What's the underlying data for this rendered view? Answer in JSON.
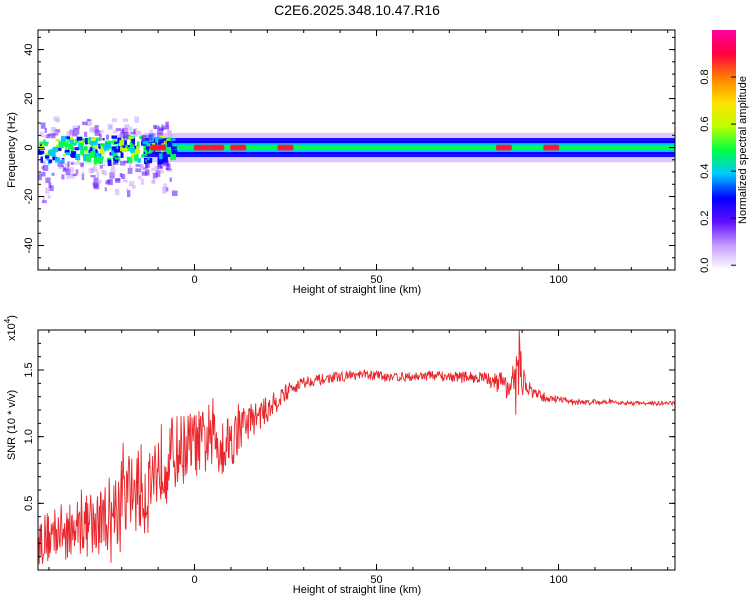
{
  "title": "C2E6.2025.348.10.47.R16",
  "chart_data": [
    {
      "type": "heatmap",
      "xlabel": "Height of straight line (km)",
      "ylabel": "Frequency (Hz)",
      "xlim": [
        -43,
        132
      ],
      "ylim": [
        -50,
        48
      ],
      "x_ticks": [
        0,
        50,
        100
      ],
      "y_ticks": [
        40,
        20,
        0,
        -20,
        -40
      ],
      "band": {
        "center_hz": 0,
        "note": "dominant energy concentrated near 0 Hz along entire profile",
        "noisy_region_km": [
          -43,
          -12
        ],
        "noisy_spread_hz": [
          -25,
          15
        ],
        "band_halfwidth_hz": 6
      },
      "hotspots_km": [
        -10,
        2,
        6,
        12,
        25,
        85,
        98
      ],
      "colorbar": {
        "label": "Normalized spectral amplitude",
        "range": [
          0,
          1
        ],
        "ticks": [
          "0.0",
          "0.2",
          "0.4",
          "0.6",
          "0.8"
        ],
        "colors": [
          "#ffffff",
          "#c8a0ff",
          "#6010ff",
          "#0000ff",
          "#00c8ff",
          "#00ff40",
          "#c0ff00",
          "#ffe000",
          "#ff8000",
          "#ff0040",
          "#ff00a0"
        ]
      }
    },
    {
      "type": "line",
      "xlabel": "Height of straight line (km)",
      "ylabel": "SNR (10 * v/v)",
      "y_scale_label": "(x10^4)",
      "scale_base": "x10",
      "scale_exp": "4",
      "xlim": [
        -43,
        132
      ],
      "ylim": [
        0,
        1.8
      ],
      "x_ticks": [
        0,
        50,
        100
      ],
      "y_ticks": [
        1.5,
        1.0,
        0.5
      ],
      "y_tick_labels": [
        "1.5",
        "1.0",
        "0.5"
      ],
      "series": [
        {
          "color": "#e8262b",
          "x": [
            -43,
            -40,
            -37,
            -34,
            -31,
            -28,
            -25,
            -22,
            -19,
            -16,
            -13,
            -10,
            -7,
            -4,
            -1,
            2,
            5,
            8,
            11,
            14,
            17,
            20,
            23,
            26,
            29,
            32,
            35,
            40,
            45,
            50,
            55,
            60,
            65,
            70,
            75,
            80,
            83,
            86,
            88,
            89,
            90,
            92,
            95,
            100,
            105,
            110,
            115,
            120,
            125,
            132
          ],
          "y": [
            0.22,
            0.25,
            0.3,
            0.28,
            0.35,
            0.3,
            0.4,
            0.45,
            0.55,
            0.6,
            0.6,
            0.8,
            0.85,
            0.9,
            0.95,
            0.95,
            1.0,
            0.95,
            1.0,
            1.1,
            1.15,
            1.2,
            1.28,
            1.35,
            1.4,
            1.42,
            1.43,
            1.45,
            1.46,
            1.46,
            1.45,
            1.45,
            1.46,
            1.45,
            1.45,
            1.44,
            1.42,
            1.4,
            1.25,
            1.6,
            1.45,
            1.35,
            1.3,
            1.28,
            1.26,
            1.26,
            1.26,
            1.25,
            1.25,
            1.25
          ],
          "amp": [
            0.2,
            0.2,
            0.2,
            0.22,
            0.22,
            0.25,
            0.28,
            0.3,
            0.32,
            0.35,
            0.35,
            0.3,
            0.3,
            0.28,
            0.25,
            0.25,
            0.3,
            0.25,
            0.2,
            0.15,
            0.12,
            0.1,
            0.08,
            0.06,
            0.05,
            0.04,
            0.04,
            0.035,
            0.035,
            0.035,
            0.035,
            0.035,
            0.035,
            0.04,
            0.04,
            0.05,
            0.06,
            0.12,
            0.3,
            0.3,
            0.15,
            0.06,
            0.04,
            0.025,
            0.02,
            0.02,
            0.015,
            0.015,
            0.015,
            0.015
          ]
        }
      ]
    }
  ]
}
